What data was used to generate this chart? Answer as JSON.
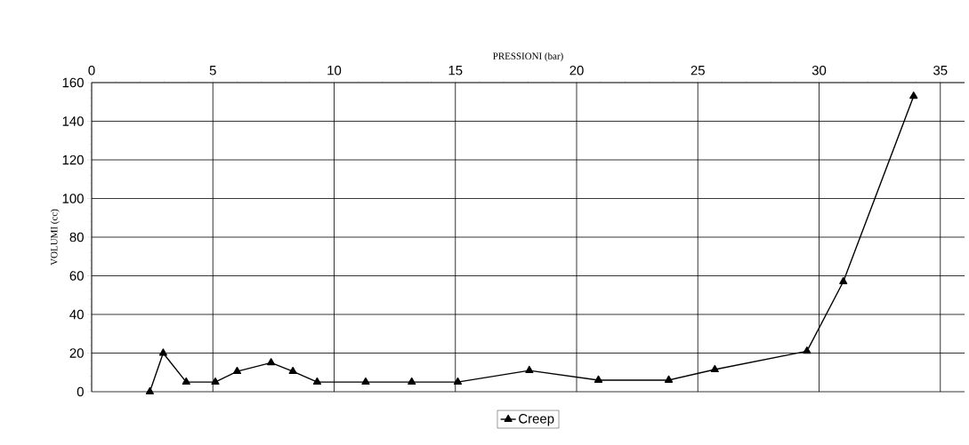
{
  "chart_data": {
    "type": "line",
    "xlabel": "PRESSIONI (bar)",
    "ylabel": "VOLUMI (cc)",
    "x": [
      2.4,
      2.95,
      3.9,
      5.1,
      6.0,
      7.4,
      8.3,
      9.3,
      11.3,
      13.2,
      15.1,
      18.05,
      20.9,
      23.8,
      25.7,
      29.5,
      31.0,
      33.9
    ],
    "series": [
      {
        "name": "Creep",
        "color": "#000000",
        "values": [
          0,
          20,
          5,
          5,
          10.5,
          15,
          10.5,
          5,
          5,
          5,
          5,
          11,
          6,
          6,
          11.5,
          21,
          57,
          153
        ]
      }
    ],
    "xlim": [
      0,
      36
    ],
    "xticks": [
      0,
      5,
      10,
      15,
      20,
      25,
      30,
      35
    ],
    "ylim": [
      0,
      160
    ],
    "yticks": [
      0,
      20,
      40,
      60,
      80,
      100,
      120,
      140,
      160
    ],
    "grid": true,
    "legend": "bottom",
    "marker": "triangle",
    "line_style": "solid"
  }
}
